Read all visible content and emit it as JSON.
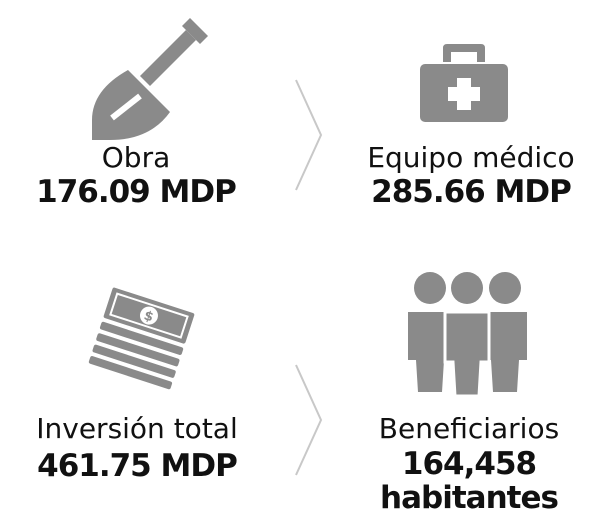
{
  "items": [
    {
      "label": "Obra",
      "value": "176.09 MDP"
    },
    {
      "label": "Equipo médico",
      "value": "285.66 MDP"
    },
    {
      "label": "Inversión total",
      "value": "461.75 MDP"
    },
    {
      "label": "Beneficiarios",
      "value": "164,458",
      "unit": "habitantes"
    }
  ]
}
